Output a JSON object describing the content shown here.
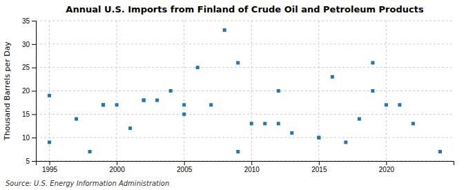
{
  "chart_data": {
    "type": "scatter",
    "title": "Annual U.S. Imports from Finland of Crude Oil and Petroleum Products",
    "ylabel": "Thousand Barrels per Day",
    "source": "Source: U.S. Energy Information Administration",
    "x": [
      1995,
      1995,
      1997,
      1998,
      1999,
      1999,
      2000,
      2001,
      2002,
      2002,
      2003,
      2004,
      2005,
      2005,
      2006,
      2007,
      2008,
      2009,
      2009,
      2010,
      2011,
      2012,
      2012,
      2013,
      2015,
      2015,
      2016,
      2017,
      2018,
      2019,
      2019,
      2020,
      2021,
      2022,
      2024
    ],
    "values": [
      9,
      19,
      14,
      7,
      17,
      17,
      17,
      12,
      18,
      18,
      18,
      20,
      15,
      17,
      25,
      17,
      33,
      26,
      7,
      13,
      13,
      20,
      13,
      11,
      10,
      10,
      23,
      9,
      14,
      26,
      20,
      17,
      17,
      13,
      7
    ],
    "xlim": [
      1994,
      2025
    ],
    "ylim": [
      5,
      35
    ],
    "xticks": [
      1995,
      2000,
      2005,
      2010,
      2015,
      2020
    ],
    "yticks": [
      5,
      10,
      15,
      20,
      25,
      30,
      35
    ],
    "grid": true,
    "marker": "square"
  }
}
